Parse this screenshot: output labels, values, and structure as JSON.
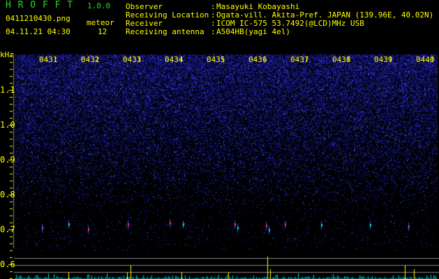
{
  "app": {
    "name": "H R O F F T",
    "version": "1.0.0"
  },
  "file": {
    "name": "0411210430.png",
    "datetime": "04.11.21 04:30"
  },
  "meteor": {
    "label": "meteor",
    "count": "12"
  },
  "info": [
    {
      "label": "Observer",
      "value": "Masayuki Kobayashi"
    },
    {
      "label": "Receiving Location",
      "value": "Ogata-vill. Akita-Pref. JAPAN (139.96E, 40.02N)"
    },
    {
      "label": "Receiver",
      "value": "ICOM IC-575 53.7492(@LCD)MHz USB"
    },
    {
      "label": "Receiving antenna",
      "value": "A504HB(yagi 4el)"
    }
  ],
  "axis": {
    "unit": "kHz",
    "y_ticks": [
      "1.1",
      "1.0",
      "0.9",
      "0.8",
      "0.7",
      "0.6"
    ],
    "time_labels": [
      "0431",
      "0432",
      "0433",
      "0434",
      "0435",
      "0436",
      "0437",
      "0438",
      "0439",
      "0440"
    ]
  },
  "colors": {
    "text": "#ffff00",
    "logo": "#22dd22",
    "noise": "#2020c0",
    "histogram": "#00e0e0",
    "meteor_bar": "#ffff00"
  }
}
